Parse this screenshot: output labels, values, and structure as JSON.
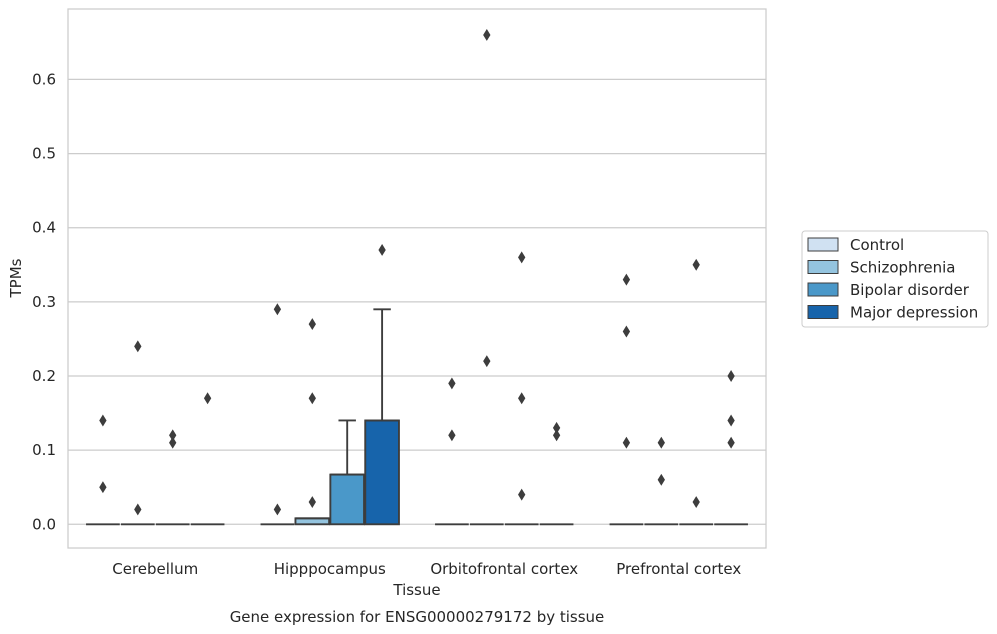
{
  "chart_data": {
    "type": "box",
    "caption": "Gene expression for ENSG00000279172 by tissue",
    "xlabel": "Tissue",
    "ylabel": "TPMs",
    "ylim": [
      -0.032,
      0.695
    ],
    "yticks": [
      "0.0",
      "0.1",
      "0.2",
      "0.3",
      "0.4",
      "0.5",
      "0.6"
    ],
    "grid": true,
    "legend_position": "right",
    "categories": [
      "Cerebellum",
      "Hipppocampus",
      "Orbitofrontal cortex",
      "Prefrontal cortex"
    ],
    "series": [
      {
        "name": "Control",
        "color": "#d0e1f2",
        "boxes": [
          {
            "q1": 0,
            "median": 0,
            "q3": 0,
            "whisker_low": 0,
            "whisker_high": 0,
            "outliers": [
              0.14,
              0.05
            ]
          },
          {
            "q1": 0,
            "median": 0,
            "q3": 0,
            "whisker_low": 0,
            "whisker_high": 0,
            "outliers": [
              0.29,
              0.02
            ]
          },
          {
            "q1": 0,
            "median": 0,
            "q3": 0,
            "whisker_low": 0,
            "whisker_high": 0,
            "outliers": [
              0.19,
              0.12
            ]
          },
          {
            "q1": 0,
            "median": 0,
            "q3": 0,
            "whisker_low": 0,
            "whisker_high": 0,
            "outliers": [
              0.33,
              0.26,
              0.11
            ]
          }
        ]
      },
      {
        "name": "Schizophrenia",
        "color": "#94c4df",
        "boxes": [
          {
            "q1": 0,
            "median": 0,
            "q3": 0,
            "whisker_low": 0,
            "whisker_high": 0,
            "outliers": [
              0.24,
              0.02
            ]
          },
          {
            "q1": 0,
            "median": 0.008,
            "q3": 0.008,
            "whisker_low": 0,
            "whisker_high": 0.008,
            "outliers": [
              0.27,
              0.17,
              0.03
            ]
          },
          {
            "q1": 0,
            "median": 0,
            "q3": 0,
            "whisker_low": 0,
            "whisker_high": 0,
            "outliers": [
              0.66,
              0.22
            ]
          },
          {
            "q1": 0,
            "median": 0,
            "q3": 0,
            "whisker_low": 0,
            "whisker_high": 0,
            "outliers": [
              0.11,
              0.06
            ]
          }
        ]
      },
      {
        "name": "Bipolar disorder",
        "color": "#4a98c9",
        "boxes": [
          {
            "q1": 0,
            "median": 0,
            "q3": 0,
            "whisker_low": 0,
            "whisker_high": 0,
            "outliers": [
              0.12,
              0.11
            ]
          },
          {
            "q1": 0,
            "median": 0.067,
            "q3": 0.067,
            "whisker_low": 0,
            "whisker_high": 0.14,
            "outliers": []
          },
          {
            "q1": 0,
            "median": 0,
            "q3": 0,
            "whisker_low": 0,
            "whisker_high": 0,
            "outliers": [
              0.36,
              0.17,
              0.04
            ]
          },
          {
            "q1": 0,
            "median": 0,
            "q3": 0,
            "whisker_low": 0,
            "whisker_high": 0,
            "outliers": [
              0.35,
              0.03
            ]
          }
        ]
      },
      {
        "name": "Major depression",
        "color": "#1764ab",
        "boxes": [
          {
            "q1": 0,
            "median": 0,
            "q3": 0,
            "whisker_low": 0,
            "whisker_high": 0,
            "outliers": [
              0.17
            ]
          },
          {
            "q1": 0,
            "median": 0.14,
            "q3": 0.14,
            "whisker_low": 0,
            "whisker_high": 0.29,
            "outliers": [
              0.37
            ]
          },
          {
            "q1": 0,
            "median": 0,
            "q3": 0,
            "whisker_low": 0,
            "whisker_high": 0,
            "outliers": [
              0.13,
              0.12
            ]
          },
          {
            "q1": 0,
            "median": 0,
            "q3": 0,
            "whisker_low": 0,
            "whisker_high": 0,
            "outliers": [
              0.2,
              0.14,
              0.11
            ]
          }
        ]
      }
    ]
  }
}
